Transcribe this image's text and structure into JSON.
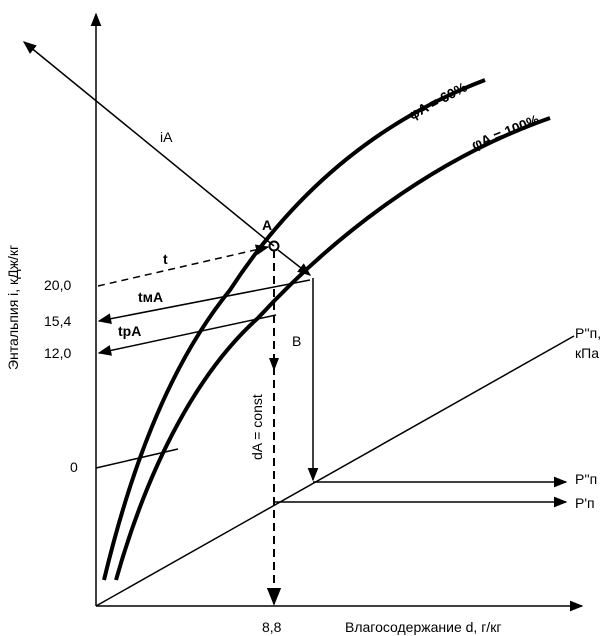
{
  "axes": {
    "y_label": "Энтальпия i, кДж/кг",
    "x_label": "Влагосодержание d, г/кг",
    "y_ticks": [
      "20,0",
      "15,4",
      "12,0",
      "0"
    ],
    "x_tick": "8,8"
  },
  "curves": {
    "phi60": "φA = 60%",
    "phi100": "φA = 100%"
  },
  "labels": {
    "iA": "iA",
    "point_A": "A",
    "point_B": "B",
    "t": "t",
    "tmA": "tмA",
    "tpA": "tpA",
    "dA": "dA = const",
    "pn2_top": "P''п,",
    "kpa": "кПа",
    "pn2": "P''п",
    "pn1": "P'п"
  }
}
